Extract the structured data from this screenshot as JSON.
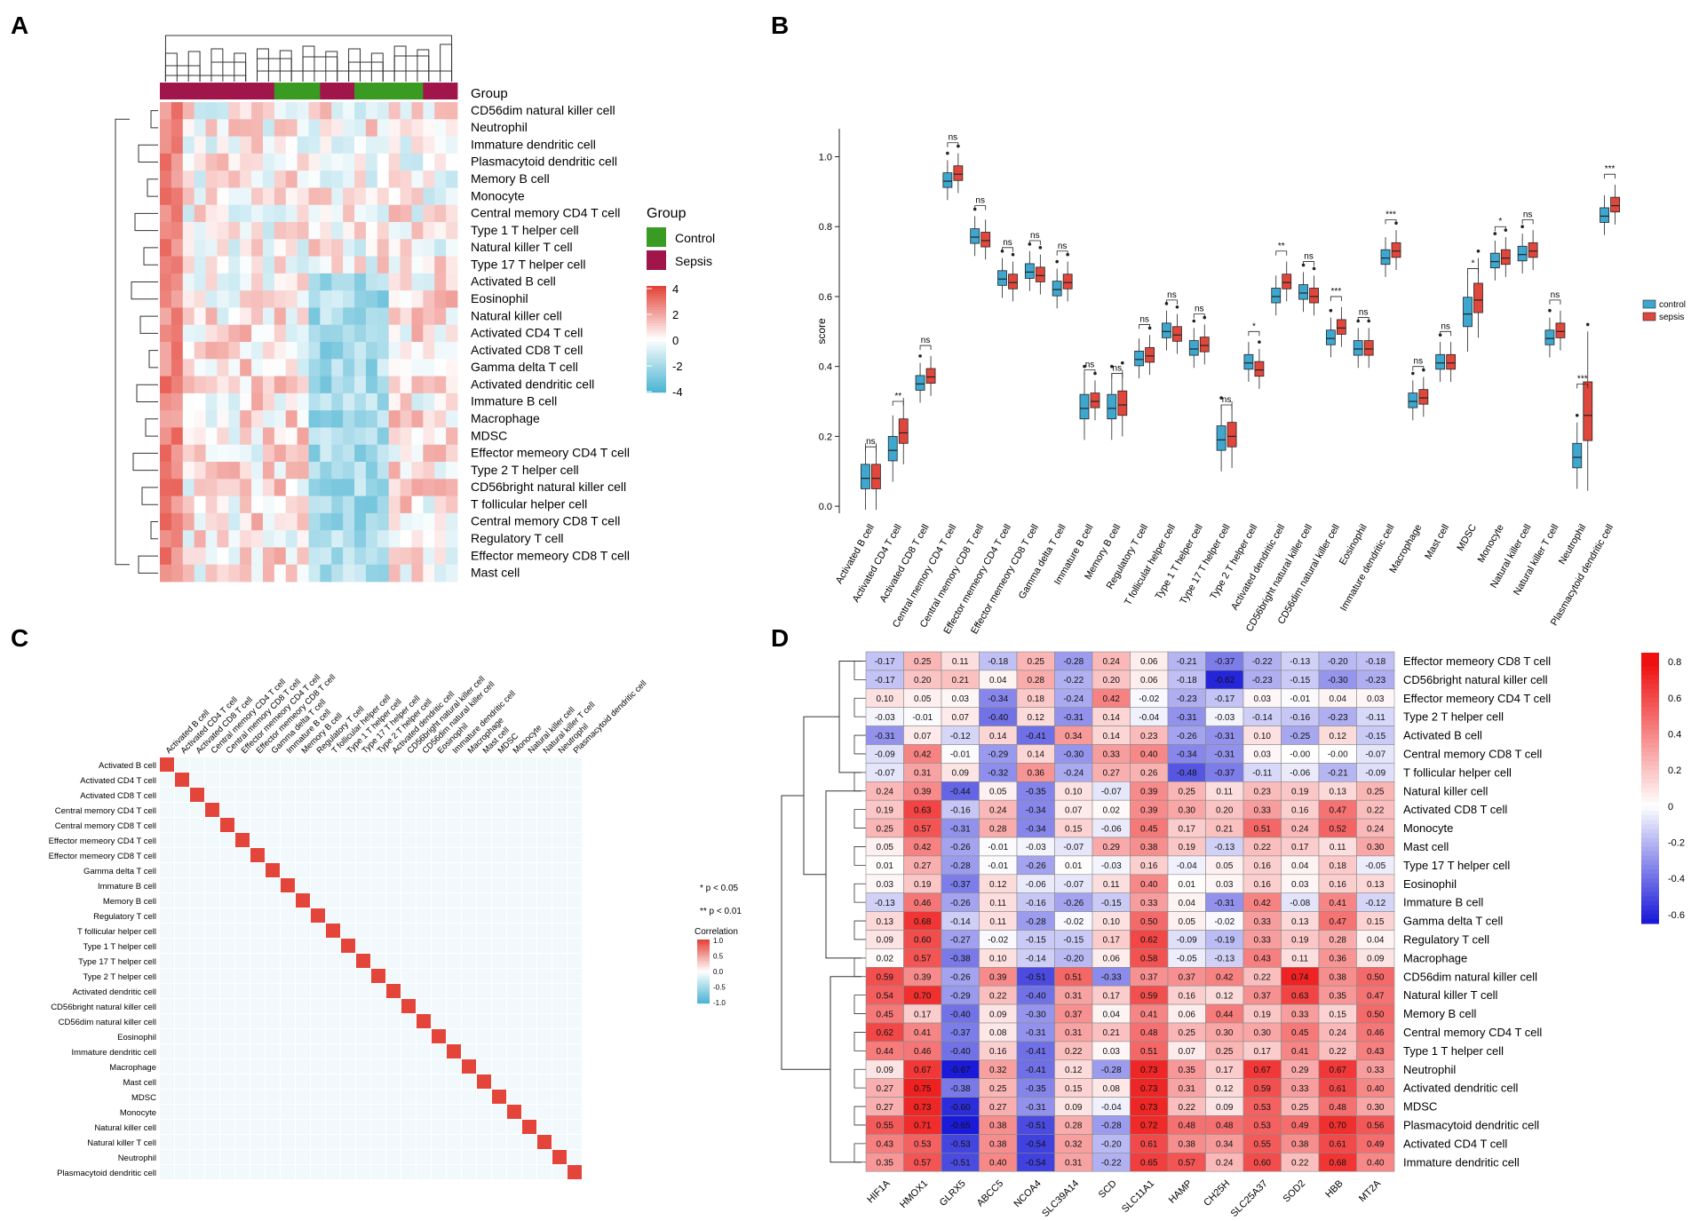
{
  "panels": {
    "A": {
      "letter": "A",
      "chart_data": {
        "type": "heatmap",
        "title": "",
        "row_labels": [
          "CD56dim natural killer cell",
          "Neutrophil",
          "Immature dendritic cell",
          "Plasmacytoid dendritic cell",
          "Memory B cell",
          "Monocyte",
          "Central memory CD4 T cell",
          "Type 1 T helper cell",
          "Natural killer T cell",
          "Type 17 T helper cell",
          "Activated B cell",
          "Eosinophil",
          "Natural killer cell",
          "Activated CD4 T cell",
          "Activated CD8 T cell",
          "Gamma delta T cell",
          "Activated dendritic cell",
          "Immature  B cell",
          "Macrophage",
          "MDSC",
          "Effector memeory CD4 T cell",
          "Type 2 T helper cell",
          "CD56bright natural killer cell",
          "T follicular helper cell",
          "Central memory CD8 T cell",
          "Regulatory T cell",
          "Effector memeory CD8 T cell",
          "Mast cell"
        ],
        "n_columns": 26,
        "group_annotation_label": "Group",
        "column_groups": [
          "Sepsis",
          "Sepsis",
          "Sepsis",
          "Sepsis",
          "Sepsis",
          "Sepsis",
          "Sepsis",
          "Sepsis",
          "Sepsis",
          "Sepsis",
          "Control",
          "Control",
          "Control",
          "Control",
          "Sepsis",
          "Sepsis",
          "Sepsis",
          "Control",
          "Control",
          "Control",
          "Control",
          "Control",
          "Control",
          "Sepsis",
          "Sepsis",
          "Sepsis"
        ],
        "legend_group_title": "Group",
        "legend_groups": [
          {
            "name": "Control",
            "color": "#3a9b23"
          },
          {
            "name": "Sepsis",
            "color": "#a0154a"
          }
        ],
        "color_scale_ticks": [
          "4",
          "2",
          "0",
          "-2",
          "-4"
        ],
        "color_scale": {
          "min": -4,
          "mid": 0,
          "max": 4,
          "low_color": "#4eb5d3",
          "mid_color": "#ffffff",
          "high_color": "#e4453a"
        }
      }
    },
    "B": {
      "letter": "B",
      "chart_data": {
        "type": "boxplot",
        "ylabel": "score",
        "ylim": [
          -0.02,
          1.08
        ],
        "yticks": [
          "0.0",
          "0.2",
          "0.4",
          "0.6",
          "0.8",
          "1.0"
        ],
        "legend": [
          {
            "name": "control",
            "color": "#3da7cf"
          },
          {
            "name": "sepsis",
            "color": "#e0473c"
          }
        ],
        "categories": [
          "Activated B cell",
          "Activated CD4 T cell",
          "Activated CD8 T cell",
          "Central memory CD4 T cell",
          "Central memory CD8 T cell",
          "Effector memeory CD4 T cell",
          "Effector memeory CD8 T cell",
          "Gamma delta T cell",
          "Immature B cell",
          "Memory B cell",
          "Regulatory T cell",
          "T follicular helper cell",
          "Type 1 T helper cell",
          "Type 17 T helper cell",
          "Type 2 T helper cell",
          "Activated dendritic cell",
          "CD56bright natural killer cell",
          "CD56dim natural killer cell",
          "Eosinophil",
          "Immature dendritic cell",
          "Macrophage",
          "Mast cell",
          "MDSC",
          "Monocyte",
          "Natural killer cell",
          "Natural killer T cell",
          "Neutrophil",
          "Plasmacytoid dendritic cell"
        ],
        "significance": [
          "ns",
          "**",
          "ns",
          "ns",
          "ns",
          "ns",
          "ns",
          "ns",
          "ns",
          "ns",
          "ns",
          "ns",
          "ns",
          "ns",
          "*",
          "**",
          "ns",
          "***",
          "ns",
          "***",
          "ns",
          "ns",
          "*",
          "*",
          "ns",
          "ns",
          "***",
          "***"
        ],
        "series": [
          {
            "name": "control",
            "median": [
              0.08,
              0.16,
              0.35,
              0.93,
              0.77,
              0.65,
              0.67,
              0.62,
              0.28,
              0.28,
              0.42,
              0.5,
              0.45,
              0.19,
              0.41,
              0.6,
              0.61,
              0.48,
              0.45,
              0.71,
              0.3,
              0.41,
              0.55,
              0.7,
              0.72,
              0.48,
              0.14,
              0.83
            ]
          },
          {
            "name": "sepsis",
            "median": [
              0.08,
              0.21,
              0.37,
              0.95,
              0.76,
              0.64,
              0.66,
              0.64,
              0.3,
              0.29,
              0.43,
              0.49,
              0.46,
              0.2,
              0.39,
              0.64,
              0.6,
              0.51,
              0.45,
              0.73,
              0.31,
              0.41,
              0.59,
              0.71,
              0.73,
              0.5,
              0.26,
              0.86
            ]
          }
        ]
      }
    },
    "C": {
      "letter": "C",
      "chart_data": {
        "type": "heatmap",
        "subtype": "correlation matrix",
        "labels": [
          "Activated B cell",
          "Activated CD4 T cell",
          "Activated CD8 T cell",
          "Central memory CD4 T cell",
          "Central memory CD8 T cell",
          "Effector memeory CD4 T cell",
          "Effector memeory CD8 T cell",
          "Gamma delta T cell",
          "Immature B cell",
          "Memory B cell",
          "Regulatory T cell",
          "T follicular helper cell",
          "Type 1 T helper cell",
          "Type 17 T helper cell",
          "Type 2 T helper cell",
          "Activated dendritic cell",
          "CD56bright natural killer cell",
          "CD56dim natural killer cell",
          "Eosinophil",
          "Immature dendritic cell",
          "Macrophage",
          "Mast cell",
          "MDSC",
          "Monocyte",
          "Natural killer cell",
          "Natural killer T cell",
          "Neutrophil",
          "Plasmacytoid dendritic cell"
        ],
        "significance_legend": [
          "* p < 0.05",
          "** p < 0.01"
        ],
        "colorbar_title": "Correlation",
        "colorbar_ticks": [
          "1.0",
          "0.5",
          "0.0",
          "-0.5",
          "-1.0"
        ],
        "range": [
          -1,
          1
        ]
      }
    },
    "D": {
      "letter": "D",
      "chart_data": {
        "type": "heatmap",
        "columns": [
          "HIF1A",
          "HMOX1",
          "GLRX5",
          "ABCC5",
          "NCOA4",
          "SLC39A14",
          "SCD",
          "SLC11A1",
          "HAMP",
          "CH25H",
          "SLC25A37",
          "SOD2",
          "HBB",
          "MT2A"
        ],
        "rows": [
          "Effector memeory CD8 T cell",
          "CD56bright natural killer cell",
          "Effector memeory CD4 T cell",
          "Type 2 T helper cell",
          "Activated B cell",
          "Central memory CD8 T cell",
          "T follicular helper cell",
          "Natural killer cell",
          "Activated CD8 T cell",
          "Monocyte",
          "Mast cell",
          "Type 17 T helper cell",
          "Eosinophil",
          "Immature  B cell",
          "Gamma delta T cell",
          "Regulatory T cell",
          "Macrophage",
          "CD56dim natural killer cell",
          "Natural killer T cell",
          "Memory B cell",
          "Central memory CD4 T cell",
          "Type 1 T helper cell",
          "Neutrophil",
          "Activated dendritic cell",
          "MDSC",
          "Plasmacytoid dendritic cell",
          "Activated CD4 T cell",
          "Immature dendritic cell"
        ],
        "values": [
          [
            "-0.17",
            "0.25",
            "0.11",
            "-0.18",
            "0.25",
            "-0.28",
            "0.24",
            "0.06",
            "-0.21",
            "-0.37",
            "-0.22",
            "-0.13",
            "-0.20",
            "-0.18"
          ],
          [
            "-0.17",
            "0.20",
            "0.21",
            "0.04",
            "0.28",
            "-0.22",
            "0.20",
            "0.06",
            "-0.18",
            "-0.62",
            "-0.23",
            "-0.15",
            "-0.30",
            "-0.23"
          ],
          [
            "0.10",
            "0.05",
            "0.03",
            "-0.34",
            "0.18",
            "-0.24",
            "0.42",
            "-0.02",
            "-0.23",
            "-0.17",
            "0.03",
            "-0.01",
            "0.04",
            "0.03"
          ],
          [
            "-0.03",
            "-0.01",
            "0.07",
            "-0.40",
            "0.12",
            "-0.31",
            "0.14",
            "-0.04",
            "-0.31",
            "-0.03",
            "-0.14",
            "-0.16",
            "-0.23",
            "-0.11"
          ],
          [
            "-0.31",
            "0.07",
            "-0.12",
            "0.14",
            "-0.41",
            "0.34",
            "0.14",
            "0.23",
            "-0.26",
            "-0.31",
            "0.10",
            "-0.25",
            "0.12",
            "-0.15"
          ],
          [
            "-0.09",
            "0.42",
            "-0.01",
            "-0.29",
            "0.14",
            "-0.30",
            "0.33",
            "0.40",
            "-0.34",
            "-0.31",
            "0.03",
            "-0.00",
            "-0.00",
            "-0.07"
          ],
          [
            "-0.07",
            "0.31",
            "0.09",
            "-0.32",
            "0.36",
            "-0.24",
            "0.27",
            "0.26",
            "-0.48",
            "-0.37",
            "-0.11",
            "-0.06",
            "-0.21",
            "-0.09"
          ],
          [
            "0.24",
            "0.39",
            "-0.44",
            "0.05",
            "-0.35",
            "0.10",
            "-0.07",
            "0.39",
            "0.25",
            "0.11",
            "0.23",
            "0.19",
            "0.13",
            "0.25"
          ],
          [
            "0.19",
            "0.63",
            "-0.16",
            "0.24",
            "-0.34",
            "0.07",
            "0.02",
            "0.39",
            "0.30",
            "0.20",
            "0.33",
            "0.16",
            "0.47",
            "0.22"
          ],
          [
            "0.25",
            "0.57",
            "-0.31",
            "0.28",
            "-0.34",
            "0.15",
            "-0.06",
            "0.45",
            "0.17",
            "0.21",
            "0.51",
            "0.24",
            "0.52",
            "0.24"
          ],
          [
            "0.05",
            "0.42",
            "-0.26",
            "-0.01",
            "-0.03",
            "-0.07",
            "0.29",
            "0.38",
            "0.19",
            "-0.13",
            "0.22",
            "0.17",
            "0.11",
            "0.30"
          ],
          [
            "0.01",
            "0.27",
            "-0.28",
            "-0.01",
            "-0.26",
            "0.01",
            "-0.03",
            "0.16",
            "-0.04",
            "0.05",
            "0.16",
            "0.04",
            "0.18",
            "-0.05"
          ],
          [
            "0.03",
            "0.19",
            "-0.37",
            "0.12",
            "-0.06",
            "-0.07",
            "0.11",
            "0.40",
            "0.01",
            "0.03",
            "0.16",
            "0.03",
            "0.16",
            "0.13"
          ],
          [
            "-0.13",
            "0.46",
            "-0.26",
            "0.11",
            "-0.16",
            "-0.26",
            "-0.15",
            "0.33",
            "0.04",
            "-0.31",
            "0.42",
            "-0.08",
            "0.41",
            "-0.12"
          ],
          [
            "0.13",
            "0.68",
            "-0.14",
            "0.11",
            "-0.28",
            "-0.02",
            "0.10",
            "0.50",
            "0.05",
            "-0.02",
            "0.33",
            "0.13",
            "0.47",
            "0.15"
          ],
          [
            "0.09",
            "0.60",
            "-0.27",
            "-0.02",
            "-0.15",
            "-0.15",
            "0.17",
            "0.62",
            "-0.09",
            "-0.19",
            "0.33",
            "0.19",
            "0.28",
            "0.04"
          ],
          [
            "0.02",
            "0.57",
            "-0.38",
            "0.10",
            "-0.14",
            "-0.20",
            "0.06",
            "0.58",
            "-0.05",
            "-0.13",
            "0.43",
            "0.11",
            "0.36",
            "0.09"
          ],
          [
            "0.59",
            "0.39",
            "-0.26",
            "0.39",
            "-0.51",
            "0.51",
            "-0.33",
            "0.37",
            "0.37",
            "0.42",
            "0.22",
            "0.74",
            "0.38",
            "0.50"
          ],
          [
            "0.54",
            "0.70",
            "-0.29",
            "0.22",
            "-0.40",
            "0.31",
            "0.17",
            "0.59",
            "0.16",
            "0.12",
            "0.37",
            "0.63",
            "0.35",
            "0.47"
          ],
          [
            "0.45",
            "0.17",
            "-0.40",
            "0.09",
            "-0.30",
            "0.37",
            "0.04",
            "0.41",
            "0.06",
            "0.44",
            "0.19",
            "0.33",
            "0.15",
            "0.50"
          ],
          [
            "0.62",
            "0.41",
            "-0.37",
            "0.08",
            "-0.31",
            "0.31",
            "0.21",
            "0.48",
            "0.25",
            "0.30",
            "0.30",
            "0.45",
            "0.24",
            "0.46"
          ],
          [
            "0.44",
            "0.46",
            "-0.40",
            "0.16",
            "-0.41",
            "0.22",
            "0.03",
            "0.51",
            "0.07",
            "0.25",
            "0.17",
            "0.41",
            "0.22",
            "0.43"
          ],
          [
            "0.09",
            "0.67",
            "-0.67",
            "0.32",
            "-0.41",
            "0.12",
            "-0.28",
            "0.73",
            "0.35",
            "0.17",
            "0.67",
            "0.29",
            "0.67",
            "0.33"
          ],
          [
            "0.27",
            "0.75",
            "-0.38",
            "0.25",
            "-0.35",
            "0.15",
            "0.08",
            "0.73",
            "0.31",
            "0.12",
            "0.59",
            "0.33",
            "0.61",
            "0.40"
          ],
          [
            "0.27",
            "0.73",
            "-0.60",
            "0.27",
            "-0.31",
            "0.09",
            "-0.04",
            "0.73",
            "0.22",
            "0.09",
            "0.53",
            "0.25",
            "0.48",
            "0.30"
          ],
          [
            "0.55",
            "0.71",
            "-0.65",
            "0.38",
            "-0.51",
            "0.28",
            "-0.28",
            "0.72",
            "0.48",
            "0.48",
            "0.53",
            "0.49",
            "0.70",
            "0.56"
          ],
          [
            "0.43",
            "0.53",
            "-0.53",
            "0.38",
            "-0.54",
            "0.32",
            "-0.20",
            "0.61",
            "0.38",
            "0.34",
            "0.55",
            "0.38",
            "0.61",
            "0.49"
          ],
          [
            "0.35",
            "0.57",
            "-0.51",
            "0.40",
            "-0.54",
            "0.31",
            "-0.22",
            "0.65",
            "0.57",
            "0.24",
            "0.60",
            "0.22",
            "0.68",
            "0.40"
          ]
        ],
        "colorbar_ticks": [
          "0.8",
          "0.6",
          "0.4",
          "0.2",
          "0",
          "-0.2",
          "-0.4",
          "-0.6"
        ],
        "range": [
          -0.65,
          0.85
        ]
      }
    }
  }
}
